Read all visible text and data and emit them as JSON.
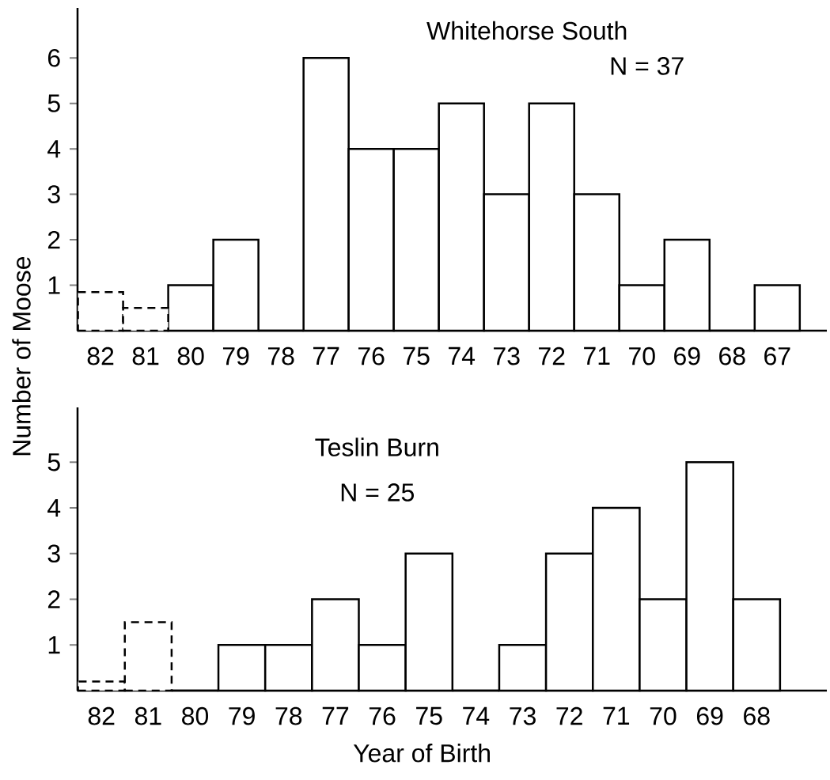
{
  "chart_data": [
    {
      "type": "bar",
      "title": "Whitehorse South",
      "subtitle": "N = 37",
      "ylabel": "Number of Moose",
      "categories": [
        "82",
        "81",
        "80",
        "79",
        "78",
        "77",
        "76",
        "75",
        "74",
        "73",
        "72",
        "71",
        "70",
        "69",
        "68",
        "67"
      ],
      "series": [
        {
          "color": "#000000",
          "values": [
            null,
            null,
            1,
            2,
            0,
            6,
            4,
            4,
            5,
            3,
            5,
            3,
            1,
            2,
            0,
            1
          ]
        },
        {
          "color": "#000000",
          "line_style": "dashed",
          "values": [
            0.85,
            0.5,
            null,
            null,
            null,
            null,
            null,
            null,
            null,
            null,
            null,
            null,
            null,
            null,
            null,
            null
          ]
        }
      ],
      "ylim": [
        0,
        7.1
      ],
      "yticks": [
        1,
        2,
        3,
        4,
        5,
        6
      ]
    },
    {
      "type": "bar",
      "title": "Teslin Burn",
      "subtitle": "N = 25",
      "xlabel": "Year of Birth",
      "categories": [
        "82",
        "81",
        "80",
        "79",
        "78",
        "77",
        "76",
        "75",
        "74",
        "73",
        "72",
        "71",
        "70",
        "69",
        "68"
      ],
      "series": [
        {
          "color": "#000000",
          "values": [
            null,
            null,
            0,
            1,
            1,
            2,
            1,
            3,
            0,
            1,
            3,
            4,
            2,
            5,
            2
          ]
        },
        {
          "color": "#000000",
          "line_style": "dashed",
          "values": [
            0.2,
            1.5,
            null,
            null,
            null,
            null,
            null,
            null,
            null,
            null,
            null,
            null,
            null,
            null,
            null
          ]
        }
      ],
      "ylim": [
        0,
        6.2
      ],
      "yticks": [
        1,
        2,
        3,
        4,
        5
      ]
    }
  ]
}
